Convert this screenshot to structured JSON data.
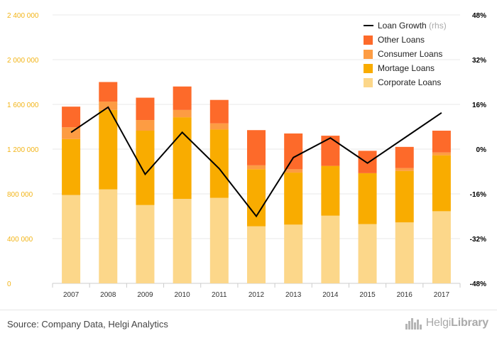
{
  "chart_data": {
    "type": "bar",
    "stacked": true,
    "categories": [
      "2007",
      "2008",
      "2009",
      "2010",
      "2011",
      "2012",
      "2013",
      "2014",
      "2015",
      "2016",
      "2017"
    ],
    "series": [
      {
        "name": "Corporate Loans",
        "color": "#fcd78a",
        "values": [
          790000,
          840000,
          700000,
          755000,
          765000,
          510000,
          525000,
          605000,
          530000,
          545000,
          645000
        ]
      },
      {
        "name": "Mortage Loans",
        "color": "#f9ac00",
        "values": [
          500000,
          710000,
          665000,
          730000,
          610000,
          510000,
          465000,
          445000,
          455000,
          460000,
          500000
        ]
      },
      {
        "name": "Consumer Loans",
        "color": "#fd9c43",
        "values": [
          105000,
          75000,
          95000,
          65000,
          55000,
          35000,
          30000,
          0,
          0,
          25000,
          25000
        ]
      },
      {
        "name": "Other Loans",
        "color": "#fd6a2a",
        "values": [
          185000,
          175000,
          200000,
          210000,
          210000,
          315000,
          320000,
          270000,
          200000,
          190000,
          195000
        ]
      }
    ],
    "line_series": {
      "name": "Loan Growth",
      "name_suffix": "(rhs)",
      "color": "#000000",
      "values": [
        6,
        15,
        -9,
        6,
        -7,
        -24,
        -3,
        4,
        -5,
        4,
        13
      ]
    },
    "y_left": {
      "min": 0,
      "max": 2400000,
      "ticks": [
        "0",
        "400 000",
        "800 000",
        "1 200 000",
        "1 600 000",
        "2 000 000",
        "2 400 000"
      ]
    },
    "y_right": {
      "min": -48,
      "max": 48,
      "ticks": [
        "-48%",
        "-32%",
        "-16%",
        "0%",
        "16%",
        "32%",
        "48%"
      ]
    },
    "grid": true,
    "legend_position": "top-right"
  },
  "footer": {
    "source": "Source: Company Data, Helgi Analytics",
    "brand_light": "Helgi",
    "brand_bold": "Library"
  }
}
